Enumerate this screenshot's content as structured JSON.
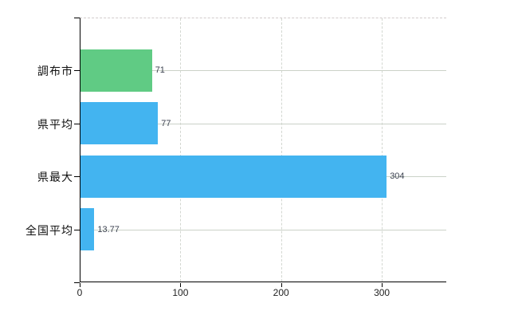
{
  "chart_data": {
    "type": "bar",
    "orientation": "horizontal",
    "title": "",
    "xlabel": "",
    "ylabel": "",
    "categories": [
      "調布市",
      "県平均",
      "県最大",
      "全国平均"
    ],
    "values": [
      71,
      77,
      304,
      13.77
    ],
    "value_labels": [
      "71",
      "77",
      "304",
      "13.77"
    ],
    "bar_colors": [
      "#60cb84",
      "#43b4f0",
      "#43b4f0",
      "#43b4f0"
    ],
    "x_tick_labels": [
      "0",
      "100",
      "200",
      "300"
    ],
    "x_tick_values": [
      0,
      100,
      200,
      300
    ],
    "xlim": [
      0,
      364
    ],
    "legend_position": "none",
    "grid": {
      "vertical_style": "dashed",
      "horizontal_style": "solid"
    },
    "colors": {
      "background": "#ffffff",
      "axis": "#000000",
      "grid_horizontal": "#cbd2c8",
      "grid_vertical": "#d3d7d1",
      "plot_top_border": "#d2cccc",
      "value_label_text": "#3c4250",
      "category_label_text": "#111111",
      "tick_label_text": "#222222"
    }
  }
}
